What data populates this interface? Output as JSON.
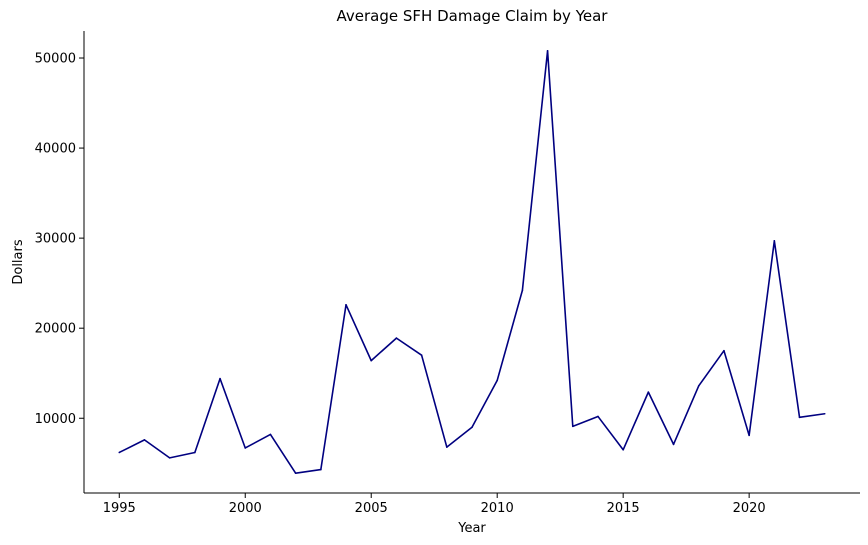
{
  "chart_data": {
    "type": "line",
    "title": "Average SFH Damage Claim by Year",
    "xlabel": "Year",
    "ylabel": "Dollars",
    "xlim": [
      1993.6,
      2024.4
    ],
    "ylim": [
      1700,
      53000
    ],
    "x_ticks": [
      1995,
      2000,
      2005,
      2010,
      2015,
      2020
    ],
    "y_ticks": [
      10000,
      20000,
      30000,
      40000,
      50000
    ],
    "grid": false,
    "legend": "none",
    "series": [
      {
        "color": "#000080",
        "x": [
          1995,
          1996,
          1997,
          1998,
          1999,
          2000,
          2001,
          2002,
          2003,
          2004,
          2005,
          2006,
          2007,
          2008,
          2009,
          2010,
          2011,
          2012,
          2013,
          2014,
          2015,
          2016,
          2017,
          2018,
          2019,
          2020,
          2021,
          2022,
          2023
        ],
        "values": [
          6200,
          7600,
          5600,
          6200,
          14400,
          6700,
          8200,
          3900,
          4300,
          22600,
          16400,
          18900,
          17000,
          6800,
          9000,
          14200,
          24200,
          50800,
          9100,
          10200,
          6500,
          12900,
          7100,
          13600,
          17500,
          8100,
          29700,
          10100,
          10500
        ]
      }
    ]
  }
}
